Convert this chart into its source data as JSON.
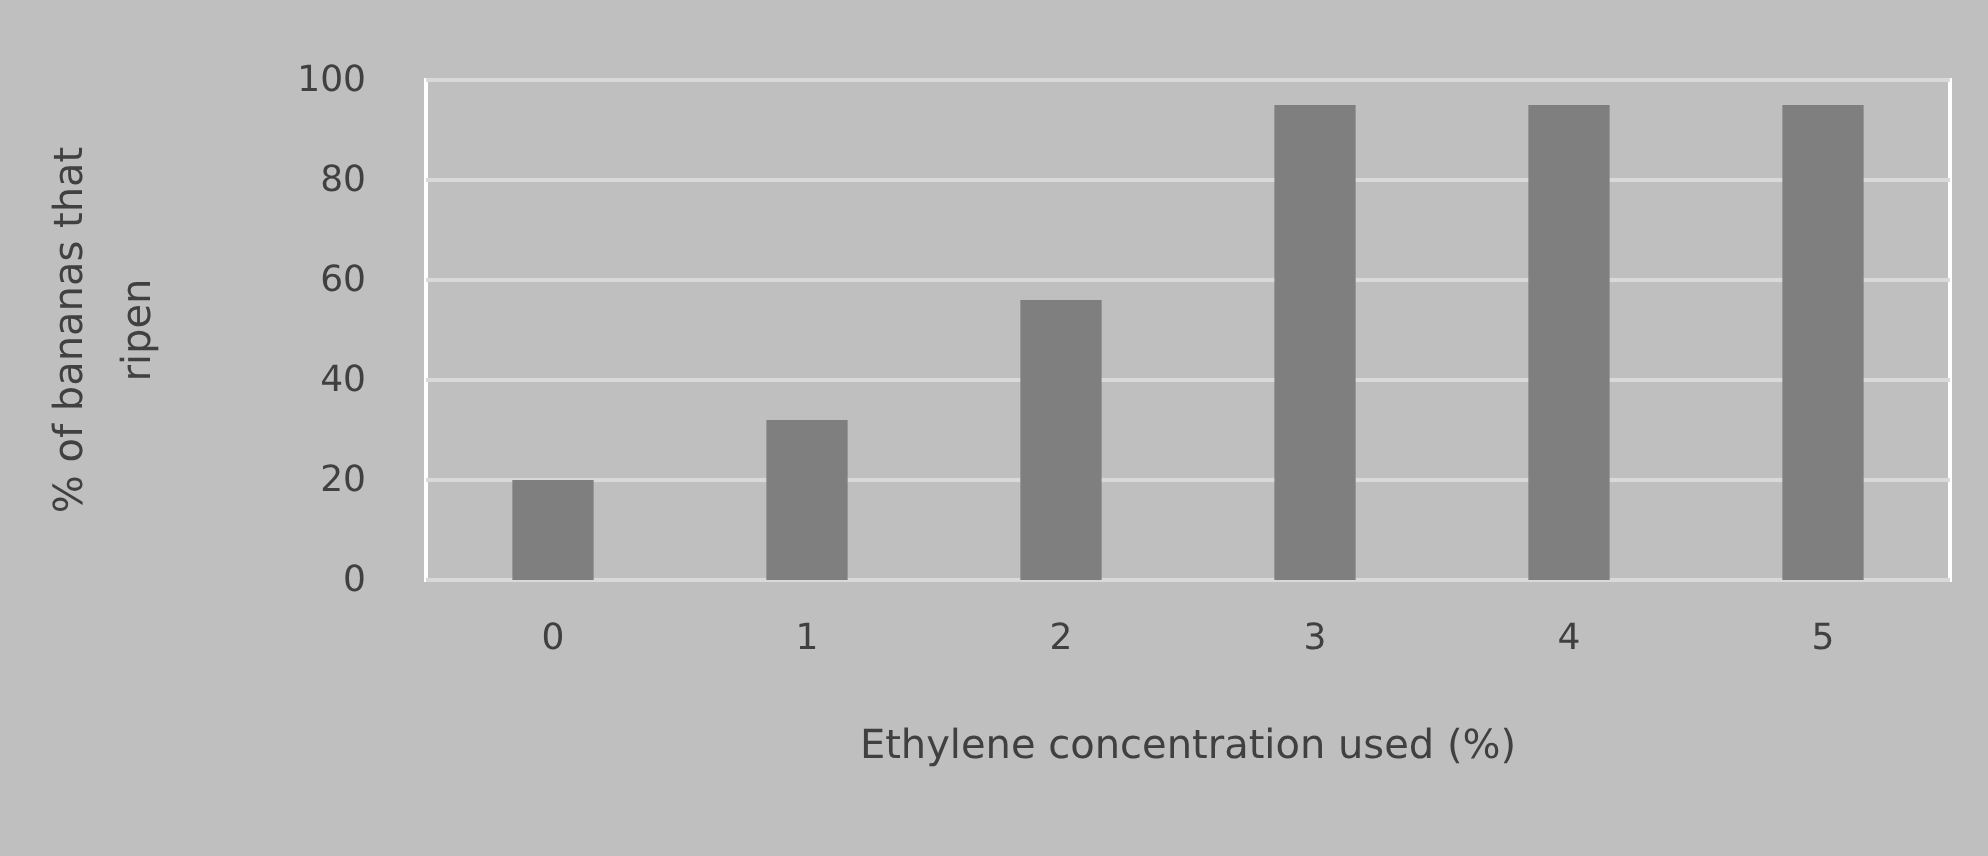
{
  "chart_data": {
    "type": "bar",
    "xlabel": "Ethylene concentration used (%)",
    "ylabel": "% of bananas that ripen",
    "categories": [
      "0",
      "1",
      "2",
      "3",
      "4",
      "5"
    ],
    "values": [
      20,
      32,
      56,
      95,
      95,
      95
    ],
    "color": "#7f7f7f",
    "ylim": [
      0,
      100
    ],
    "yticks": [
      0,
      20,
      40,
      60,
      80,
      100
    ],
    "grid": "y"
  }
}
